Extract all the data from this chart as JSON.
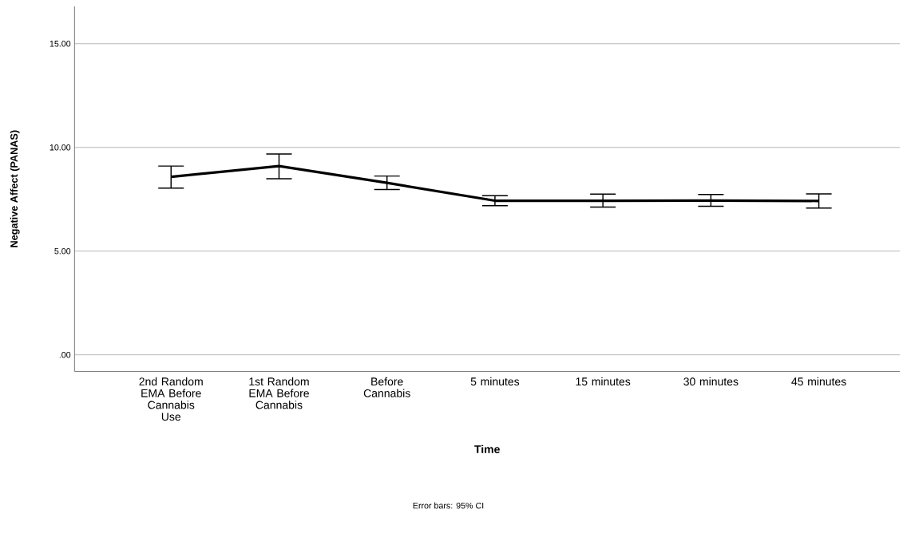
{
  "chart_data": {
    "type": "line",
    "xlabel": "Time",
    "ylabel": "Negative Affect (PANAS)",
    "categories": [
      "2nd Random EMA Before Cannabis Use",
      "1st Random EMA Before Cannabis",
      "Before Cannabis",
      "5 minutes",
      "15 minutes",
      "30 minutes",
      "45 minutes"
    ],
    "series": [
      {
        "color": "#000000",
        "values": [
          8.58,
          9.1,
          8.29,
          7.43,
          7.43,
          7.44,
          7.42
        ],
        "errors": [
          [
            8.04,
            9.1
          ],
          [
            8.49,
            9.68
          ],
          [
            7.97,
            8.62
          ],
          [
            7.19,
            7.67
          ],
          [
            7.12,
            7.75
          ],
          [
            7.16,
            7.73
          ],
          [
            7.08,
            7.76
          ]
        ]
      }
    ],
    "ylim": [
      -0.8,
      16.8
    ],
    "yticks": [
      {
        "value": 0,
        "label": ".00"
      },
      {
        "value": 5,
        "label": "5.00"
      },
      {
        "value": 10,
        "label": "10.00"
      },
      {
        "value": 15,
        "label": "15.00"
      }
    ],
    "grid": "y",
    "marker": "none",
    "line_style": "solid",
    "annotations": [
      "Error bars: 95% CI"
    ]
  }
}
